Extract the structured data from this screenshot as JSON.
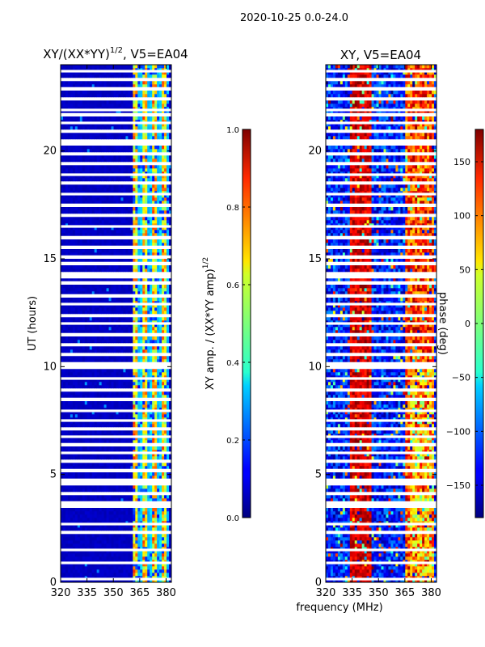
{
  "chart_data": {
    "suptitle": "2020-10-25 0.0-24.0",
    "xlabel": "frequency (MHz)",
    "panels": [
      {
        "id": "amp",
        "type": "heatmap",
        "title": "XY/(XX*YY)",
        "title_exponent": "1/2",
        "title_suffix": ", V5=EA04",
        "ylabel": "UT (hours)",
        "xlim": [
          320,
          383
        ],
        "ylim": [
          0,
          24
        ],
        "x_ticks": [
          320,
          335,
          350,
          365,
          380
        ],
        "y_ticks": [
          0,
          5,
          10,
          15,
          20
        ],
        "colorbar": {
          "label": "XY amp. / (XX*YY amp)",
          "label_exponent": "1/2",
          "range": [
            0.0,
            1.0
          ],
          "ticks": [
            "0.0",
            "0.2",
            "0.4",
            "0.6",
            "0.8",
            "1.0"
          ],
          "tick_values": [
            0.0,
            0.2,
            0.4,
            0.6,
            0.8,
            1.0
          ]
        },
        "colormap": "jet",
        "signal_band_mhz": [
          361,
          381
        ],
        "background_value": 0.05,
        "signal_value_range": [
          0.25,
          0.85
        ]
      },
      {
        "id": "phase",
        "type": "heatmap",
        "title": "XY, V5=EA04",
        "xlim": [
          320,
          383
        ],
        "ylim": [
          0,
          24
        ],
        "x_ticks": [
          320,
          335,
          350,
          365,
          380
        ],
        "y_ticks": [
          0,
          5,
          10,
          15,
          20
        ],
        "colorbar": {
          "label": "phase (deg)",
          "range": [
            -180,
            180
          ],
          "ticks": [
            "150",
            "100",
            "50",
            "0",
            "−50",
            "−100",
            "−150"
          ],
          "tick_values": [
            150,
            100,
            50,
            0,
            -50,
            -100,
            -150
          ]
        },
        "colormap": "jet",
        "phase_trend": "red-orange (+100 to +180 deg) near 335-345 MHz and 365-380 MHz, blue (-100 to -180 deg) elsewhere, noisy"
      }
    ],
    "flagged_ut_hours": [
      0.15,
      0.9,
      1.5,
      2.3,
      2.7,
      3.55,
      3.7,
      4.1,
      4.55,
      4.75,
      5.2,
      5.6,
      6.0,
      6.4,
      6.75,
      7.1,
      7.5,
      7.95,
      8.5,
      8.9,
      9.45,
      9.95,
      10.15,
      10.55,
      11.0,
      11.5,
      12.0,
      12.35,
      12.9,
      13.3,
      13.9,
      14.15,
      14.3,
      14.8,
      15.1,
      15.55,
      16.0,
      16.5,
      17.0,
      17.5,
      18.0,
      18.5,
      18.9,
      19.4,
      19.85,
      20.35,
      20.45,
      20.9,
      21.3,
      21.7,
      21.9,
      22.4,
      22.9,
      23.3,
      23.7
    ]
  }
}
